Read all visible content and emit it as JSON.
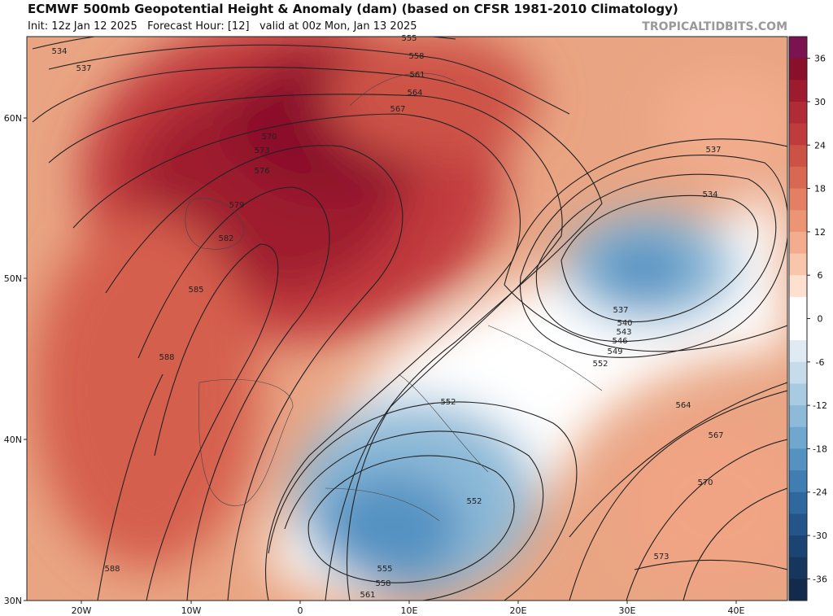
{
  "header": {
    "title": "ECMWF 500mb Geopotential Height & Anomaly (dam) (based on CFSR 1981-2010 Climatology)",
    "subtitle": "Init: 12z Jan 12 2025   Forecast Hour: [12]   valid at 00z Mon, Jan 13 2025",
    "credit": "TROPICALTIDBITS.COM"
  },
  "map": {
    "lat_labels": [
      "60N",
      "50N",
      "40N",
      "30N"
    ],
    "lon_labels": [
      "20W",
      "10W",
      "0",
      "10E",
      "20E",
      "30E",
      "40E"
    ],
    "contour_labels": [
      534,
      537,
      555,
      558,
      561,
      564,
      567,
      570,
      573,
      576,
      579,
      582,
      585,
      588,
      588,
      537,
      534,
      537,
      540,
      543,
      546,
      549,
      552,
      552,
      552,
      555,
      558,
      561,
      564,
      567,
      570,
      573
    ]
  },
  "colorbar": {
    "range": [
      -39,
      39
    ],
    "ticks": [
      36,
      30,
      24,
      18,
      12,
      6,
      0,
      -6,
      -12,
      -18,
      -24,
      -30,
      -36
    ],
    "colors": [
      "#7a1350",
      "#8a0f2a",
      "#9e1b2f",
      "#b02b35",
      "#c03c3c",
      "#cd5246",
      "#d96852",
      "#e47f63",
      "#ec9575",
      "#f3ad8e",
      "#f9c6ac",
      "#fde0d0",
      "#ffffff",
      "#ffffff",
      "#dfeaf2",
      "#c7dcea",
      "#a9cbe1",
      "#8dbad8",
      "#70a7ce",
      "#5592c2",
      "#3f7db3",
      "#2f689f",
      "#23558a",
      "#1b4473",
      "#17365e",
      "#142a4c"
    ]
  }
}
